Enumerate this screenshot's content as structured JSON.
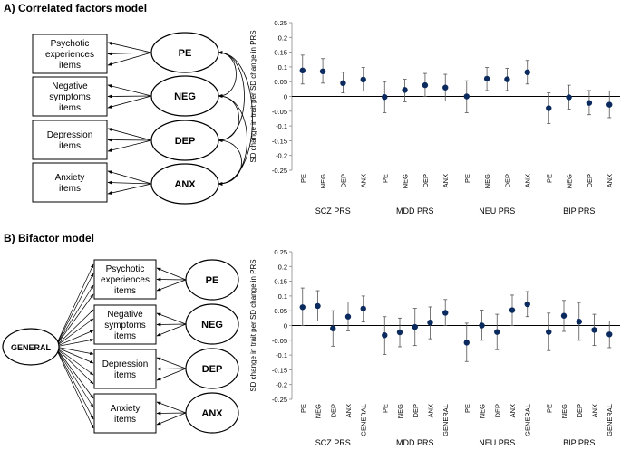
{
  "panel_a": {
    "title": "A) Correlated factors model",
    "diagram": {
      "items": [
        "Psychotic experiences items",
        "Negative symptoms items",
        "Depression items",
        "Anxiety items"
      ],
      "factors": [
        "PE",
        "NEG",
        "DEP",
        "ANX"
      ]
    }
  },
  "panel_b": {
    "title": "B) Bifactor model",
    "diagram": {
      "general": "GENERAL",
      "items": [
        "Psychotic experiences items",
        "Negative symptoms items",
        "Depression items",
        "Anxiety items"
      ],
      "factors": [
        "PE",
        "NEG",
        "DEP",
        "ANX"
      ]
    }
  },
  "chart_data": [
    {
      "type": "scatter",
      "title": "",
      "ylabel": "SD change in trait per SD change in PRS",
      "ylim": [
        -0.25,
        0.25
      ],
      "yticks": [
        0.25,
        0.2,
        0.15,
        0.1,
        0.05,
        0,
        -0.05,
        -0.1,
        -0.15,
        -0.2,
        -0.25
      ],
      "groups": [
        {
          "name": "SCZ  PRS",
          "categories": [
            "PE",
            "NEG",
            "DEP",
            "ANX"
          ],
          "values": [
            0.088,
            0.085,
            0.045,
            0.057
          ],
          "lower": [
            0.042,
            0.045,
            0.012,
            0.018
          ],
          "upper": [
            0.14,
            0.128,
            0.082,
            0.098
          ]
        },
        {
          "name": "MDD PRS",
          "categories": [
            "PE",
            "NEG",
            "DEP",
            "ANX"
          ],
          "values": [
            -0.002,
            0.022,
            0.038,
            0.03
          ],
          "lower": [
            -0.055,
            -0.018,
            0.0,
            -0.015
          ],
          "upper": [
            0.05,
            0.058,
            0.078,
            0.075
          ]
        },
        {
          "name": "NEU PRS",
          "categories": [
            "PE",
            "NEG",
            "DEP",
            "ANX"
          ],
          "values": [
            0.0,
            0.06,
            0.058,
            0.082
          ],
          "lower": [
            -0.055,
            0.02,
            0.02,
            0.042
          ],
          "upper": [
            0.053,
            0.098,
            0.095,
            0.122
          ]
        },
        {
          "name": "BIP PRS",
          "categories": [
            "PE",
            "NEG",
            "DEP",
            "ANX"
          ],
          "values": [
            -0.04,
            -0.003,
            -0.022,
            -0.028
          ],
          "lower": [
            -0.092,
            -0.043,
            -0.062,
            -0.072
          ],
          "upper": [
            0.012,
            0.038,
            0.02,
            0.018
          ]
        }
      ]
    },
    {
      "type": "scatter",
      "title": "",
      "ylabel": "SD change in trait per SD change in PRS",
      "ylim": [
        -0.25,
        0.25
      ],
      "yticks": [
        0.25,
        0.2,
        0.15,
        0.1,
        0.05,
        0,
        -0.05,
        -0.1,
        -0.15,
        -0.2,
        -0.25
      ],
      "groups": [
        {
          "name": "SCZ PRS",
          "categories": [
            "PE",
            "NEG",
            "DEP",
            "ANX",
            "GENERAL"
          ],
          "values": [
            0.062,
            0.066,
            -0.01,
            0.03,
            0.057
          ],
          "lower": [
            0.0,
            0.015,
            -0.07,
            -0.018,
            0.012
          ],
          "upper": [
            0.127,
            0.118,
            0.05,
            0.08,
            0.1
          ]
        },
        {
          "name": "MDD PRS",
          "categories": [
            "PE",
            "NEG",
            "DEP",
            "ANX",
            "GENERAL"
          ],
          "values": [
            -0.033,
            -0.023,
            -0.005,
            0.01,
            0.043
          ],
          "lower": [
            -0.098,
            -0.072,
            -0.068,
            -0.045,
            0.0
          ],
          "upper": [
            0.03,
            0.025,
            0.058,
            0.063,
            0.088
          ]
        },
        {
          "name": "NEU PRS",
          "categories": [
            "PE",
            "NEG",
            "DEP",
            "ANX",
            "GENERAL"
          ],
          "values": [
            -0.058,
            0.0,
            -0.022,
            0.052,
            0.072
          ],
          "lower": [
            -0.122,
            -0.05,
            -0.082,
            0.0,
            0.03
          ],
          "upper": [
            0.008,
            0.052,
            0.038,
            0.103,
            0.115
          ]
        },
        {
          "name": "BIP PRS",
          "categories": [
            "PE",
            "NEG",
            "DEP",
            "ANX",
            "GENERAL"
          ],
          "values": [
            -0.022,
            0.033,
            0.013,
            -0.015,
            -0.03
          ],
          "lower": [
            -0.085,
            -0.02,
            -0.05,
            -0.068,
            -0.075
          ],
          "upper": [
            0.042,
            0.085,
            0.078,
            0.038,
            0.015
          ]
        }
      ]
    }
  ]
}
